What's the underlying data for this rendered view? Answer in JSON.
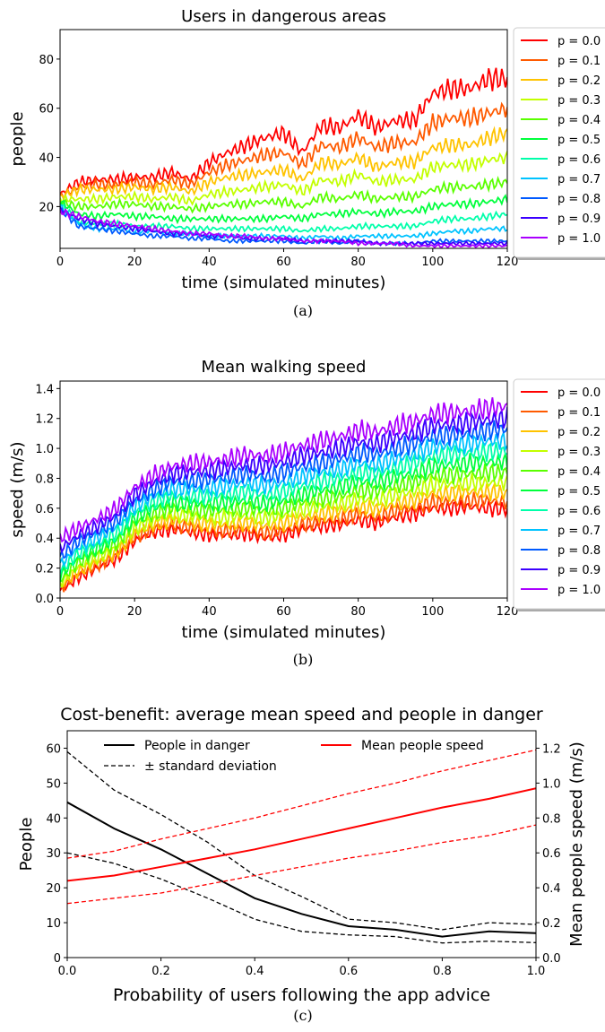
{
  "captions": [
    "(a)",
    "(b)",
    "(c)"
  ],
  "chart_data": [
    {
      "type": "line",
      "title": "Users in dangerous areas",
      "xlabel": "time (simulated minutes)",
      "ylabel": "people",
      "xlim": [
        0,
        120
      ],
      "ylim": [
        3,
        92
      ],
      "xticks": [
        0,
        20,
        40,
        60,
        80,
        100,
        120
      ],
      "yticks": [
        20,
        40,
        60,
        80
      ],
      "legend_position": "right, outside",
      "x": [
        0,
        5,
        10,
        15,
        20,
        25,
        30,
        35,
        40,
        45,
        50,
        55,
        60,
        65,
        70,
        75,
        80,
        85,
        90,
        95,
        100,
        105,
        110,
        115,
        120
      ],
      "series": [
        {
          "name": "p = 0.0",
          "color": "#ff0000",
          "values": [
            25,
            30,
            31,
            31,
            32,
            32,
            34,
            31,
            38,
            42,
            45,
            48,
            50,
            42,
            53,
            52,
            57,
            52,
            55,
            55,
            66,
            68,
            68,
            72,
            72
          ]
        },
        {
          "name": "p = 0.1",
          "color": "#ff5a00",
          "values": [
            24,
            28,
            29,
            29,
            30,
            29,
            31,
            29,
            34,
            37,
            39,
            41,
            42,
            37,
            45,
            44,
            48,
            44,
            46,
            46,
            54,
            56,
            56,
            58,
            60
          ]
        },
        {
          "name": "p = 0.2",
          "color": "#ffc300",
          "values": [
            24,
            27,
            27,
            27,
            28,
            27,
            28,
            26,
            30,
            32,
            33,
            34,
            35,
            31,
            38,
            37,
            40,
            36,
            38,
            38,
            44,
            45,
            45,
            48,
            50
          ]
        },
        {
          "name": "p = 0.3",
          "color": "#c3ff00",
          "values": [
            23,
            23,
            23,
            24,
            24,
            23,
            24,
            22,
            25,
            26,
            27,
            28,
            29,
            26,
            31,
            30,
            33,
            30,
            31,
            31,
            36,
            37,
            37,
            39,
            40
          ]
        },
        {
          "name": "p = 0.4",
          "color": "#5aff00",
          "values": [
            22,
            20,
            20,
            21,
            21,
            20,
            20,
            19,
            20,
            21,
            21,
            22,
            22,
            20,
            24,
            23,
            25,
            23,
            24,
            24,
            27,
            28,
            28,
            29,
            30
          ]
        },
        {
          "name": "p = 0.5",
          "color": "#00ff3c",
          "values": [
            22,
            17,
            16,
            17,
            16,
            16,
            15,
            15,
            15,
            15,
            15,
            15,
            16,
            15,
            17,
            17,
            18,
            17,
            18,
            18,
            20,
            21,
            21,
            22,
            23
          ]
        },
        {
          "name": "p = 0.6",
          "color": "#00ffaa",
          "values": [
            21,
            14,
            13,
            13,
            12,
            12,
            12,
            11,
            11,
            11,
            11,
            11,
            11,
            10,
            11,
            11,
            12,
            12,
            12,
            12,
            14,
            15,
            15,
            16,
            17
          ]
        },
        {
          "name": "p = 0.7",
          "color": "#00c3ff",
          "values": [
            20,
            13,
            11,
            11,
            10,
            10,
            9,
            9,
            8,
            8,
            8,
            8,
            8,
            7,
            8,
            7,
            8,
            8,
            8,
            8,
            9,
            10,
            10,
            11,
            11
          ]
        },
        {
          "name": "p = 0.8",
          "color": "#005aff",
          "values": [
            19,
            12,
            11,
            10,
            9,
            8,
            8,
            7,
            7,
            6,
            6,
            6,
            6,
            5,
            6,
            5,
            6,
            5,
            5,
            5,
            6,
            6,
            6,
            6,
            6
          ]
        },
        {
          "name": "p = 0.9",
          "color": "#3c00ff",
          "values": [
            19,
            15,
            13,
            12,
            11,
            10,
            9,
            9,
            8,
            8,
            7,
            7,
            7,
            6,
            6,
            6,
            6,
            5,
            5,
            5,
            5,
            5,
            5,
            5,
            5
          ]
        },
        {
          "name": "p = 1.0",
          "color": "#aa00ff",
          "values": [
            18,
            16,
            14,
            13,
            12,
            11,
            10,
            9,
            9,
            8,
            8,
            7,
            7,
            6,
            6,
            6,
            5,
            5,
            5,
            4,
            4,
            4,
            4,
            4,
            4
          ]
        }
      ]
    },
    {
      "type": "line",
      "title": "Mean walking speed",
      "xlabel": "time (simulated minutes)",
      "ylabel": "speed (m/s)",
      "xlim": [
        0,
        120
      ],
      "ylim": [
        0,
        1.45
      ],
      "xticks": [
        0,
        20,
        40,
        60,
        80,
        100,
        120
      ],
      "yticks": [
        "0.0",
        "0.2",
        "0.4",
        "0.6",
        "0.8",
        "1.0",
        "1.2",
        "1.4"
      ],
      "legend_position": "right, outside",
      "x": [
        0,
        5,
        10,
        15,
        20,
        25,
        30,
        35,
        40,
        45,
        50,
        55,
        60,
        65,
        70,
        75,
        80,
        85,
        90,
        95,
        100,
        105,
        110,
        115,
        120
      ],
      "series": [
        {
          "name": "p = 0.0",
          "color": "#ff0000",
          "values": [
            0.05,
            0.14,
            0.2,
            0.26,
            0.38,
            0.44,
            0.46,
            0.44,
            0.42,
            0.42,
            0.43,
            0.4,
            0.42,
            0.46,
            0.48,
            0.49,
            0.52,
            0.5,
            0.54,
            0.56,
            0.6,
            0.6,
            0.61,
            0.6,
            0.59
          ]
        },
        {
          "name": "p = 0.1",
          "color": "#ff5a00",
          "values": [
            0.06,
            0.16,
            0.22,
            0.28,
            0.41,
            0.46,
            0.49,
            0.47,
            0.45,
            0.45,
            0.46,
            0.43,
            0.45,
            0.49,
            0.51,
            0.53,
            0.56,
            0.54,
            0.58,
            0.6,
            0.64,
            0.64,
            0.65,
            0.65,
            0.64
          ]
        },
        {
          "name": "p = 0.2",
          "color": "#ffc300",
          "values": [
            0.08,
            0.18,
            0.24,
            0.3,
            0.43,
            0.49,
            0.52,
            0.51,
            0.49,
            0.49,
            0.5,
            0.48,
            0.5,
            0.54,
            0.56,
            0.58,
            0.61,
            0.59,
            0.63,
            0.65,
            0.7,
            0.7,
            0.71,
            0.71,
            0.7
          ]
        },
        {
          "name": "p = 0.3",
          "color": "#c3ff00",
          "values": [
            0.1,
            0.21,
            0.27,
            0.33,
            0.46,
            0.52,
            0.56,
            0.55,
            0.53,
            0.54,
            0.55,
            0.53,
            0.55,
            0.59,
            0.61,
            0.63,
            0.66,
            0.65,
            0.69,
            0.71,
            0.76,
            0.76,
            0.77,
            0.77,
            0.77
          ]
        },
        {
          "name": "p = 0.4",
          "color": "#5aff00",
          "values": [
            0.12,
            0.24,
            0.3,
            0.36,
            0.5,
            0.56,
            0.6,
            0.59,
            0.58,
            0.59,
            0.6,
            0.58,
            0.6,
            0.64,
            0.66,
            0.68,
            0.72,
            0.71,
            0.75,
            0.77,
            0.82,
            0.82,
            0.83,
            0.84,
            0.84
          ]
        },
        {
          "name": "p = 0.5",
          "color": "#00ff3c",
          "values": [
            0.15,
            0.27,
            0.33,
            0.39,
            0.53,
            0.6,
            0.64,
            0.63,
            0.63,
            0.64,
            0.65,
            0.63,
            0.65,
            0.69,
            0.72,
            0.74,
            0.78,
            0.77,
            0.81,
            0.83,
            0.88,
            0.89,
            0.9,
            0.91,
            0.91
          ]
        },
        {
          "name": "p = 0.6",
          "color": "#00ffaa",
          "values": [
            0.18,
            0.3,
            0.36,
            0.43,
            0.57,
            0.64,
            0.68,
            0.68,
            0.68,
            0.69,
            0.71,
            0.69,
            0.71,
            0.75,
            0.78,
            0.8,
            0.84,
            0.83,
            0.87,
            0.9,
            0.95,
            0.96,
            0.97,
            0.98,
            0.98
          ]
        },
        {
          "name": "p = 0.7",
          "color": "#00c3ff",
          "values": [
            0.22,
            0.34,
            0.4,
            0.47,
            0.61,
            0.68,
            0.73,
            0.73,
            0.73,
            0.75,
            0.77,
            0.75,
            0.77,
            0.81,
            0.84,
            0.86,
            0.9,
            0.89,
            0.93,
            0.96,
            1.01,
            1.02,
            1.03,
            1.05,
            1.05
          ]
        },
        {
          "name": "p = 0.8",
          "color": "#005aff",
          "values": [
            0.27,
            0.38,
            0.44,
            0.51,
            0.65,
            0.72,
            0.78,
            0.78,
            0.79,
            0.81,
            0.83,
            0.81,
            0.84,
            0.88,
            0.9,
            0.93,
            0.97,
            0.96,
            1.0,
            1.03,
            1.08,
            1.09,
            1.1,
            1.12,
            1.13
          ]
        },
        {
          "name": "p = 0.9",
          "color": "#3c00ff",
          "values": [
            0.33,
            0.42,
            0.48,
            0.55,
            0.69,
            0.77,
            0.83,
            0.84,
            0.85,
            0.87,
            0.89,
            0.88,
            0.91,
            0.95,
            0.97,
            1.0,
            1.04,
            1.03,
            1.07,
            1.1,
            1.15,
            1.16,
            1.17,
            1.19,
            1.2
          ]
        },
        {
          "name": "p = 1.0",
          "color": "#aa00ff",
          "values": [
            0.4,
            0.47,
            0.53,
            0.6,
            0.74,
            0.82,
            0.88,
            0.9,
            0.91,
            0.93,
            0.96,
            0.95,
            0.98,
            1.02,
            1.05,
            1.08,
            1.12,
            1.11,
            1.15,
            1.18,
            1.23,
            1.24,
            1.25,
            1.27,
            1.28
          ]
        }
      ]
    },
    {
      "type": "line",
      "title": "Cost-benefit: average mean speed and people in danger",
      "xlabel": "Probability of users following the app advice",
      "ylabel": "People",
      "y2label": "Mean people speed (m/s)",
      "xlim": [
        0,
        1
      ],
      "ylim": [
        0,
        65
      ],
      "y2lim": [
        0,
        1.3
      ],
      "xticks": [
        "0.0",
        "0.2",
        "0.4",
        "0.6",
        "0.8",
        "1.0"
      ],
      "yticks": [
        0,
        10,
        20,
        30,
        40,
        50,
        60
      ],
      "y2ticks": [
        "0.0",
        "0.2",
        "0.4",
        "0.6",
        "0.8",
        "1.0",
        "1.2"
      ],
      "legend_position": "top",
      "x": [
        0.0,
        0.1,
        0.2,
        0.3,
        0.4,
        0.5,
        0.6,
        0.7,
        0.8,
        0.9,
        1.0
      ],
      "series": [
        {
          "name": "People in danger",
          "axis": "left",
          "color": "#000000",
          "style": "solid",
          "values": [
            44.5,
            37,
            31,
            24,
            17,
            12.5,
            9,
            8,
            6,
            7.5,
            7
          ]
        },
        {
          "axis": "left",
          "color": "#000000",
          "style": "dashed",
          "values": [
            59,
            48,
            41,
            33,
            23.5,
            17.5,
            11,
            10,
            8,
            10,
            9.5
          ]
        },
        {
          "axis": "left",
          "color": "#000000",
          "style": "dashed",
          "values": [
            30,
            27,
            22.5,
            17,
            11,
            7.5,
            6.5,
            6,
            4.2,
            4.7,
            4.3
          ]
        },
        {
          "name": "Mean people speed",
          "axis": "right",
          "color": "#ff0000",
          "style": "solid",
          "values": [
            0.44,
            0.47,
            0.52,
            0.57,
            0.62,
            0.68,
            0.74,
            0.8,
            0.86,
            0.91,
            0.97
          ]
        },
        {
          "axis": "right",
          "color": "#ff0000",
          "style": "dashed",
          "values": [
            0.57,
            0.61,
            0.68,
            0.74,
            0.8,
            0.87,
            0.94,
            1.0,
            1.07,
            1.13,
            1.19
          ]
        },
        {
          "axis": "right",
          "color": "#ff0000",
          "style": "dashed",
          "values": [
            0.31,
            0.34,
            0.37,
            0.42,
            0.47,
            0.52,
            0.57,
            0.61,
            0.66,
            0.7,
            0.76
          ]
        }
      ],
      "legend": [
        {
          "label": "People in danger",
          "color": "#000000",
          "style": "solid"
        },
        {
          "label": "± standard deviation",
          "color": "#000000",
          "style": "dashed"
        },
        {
          "label": "Mean people speed",
          "color": "#ff0000",
          "style": "solid"
        }
      ]
    }
  ]
}
